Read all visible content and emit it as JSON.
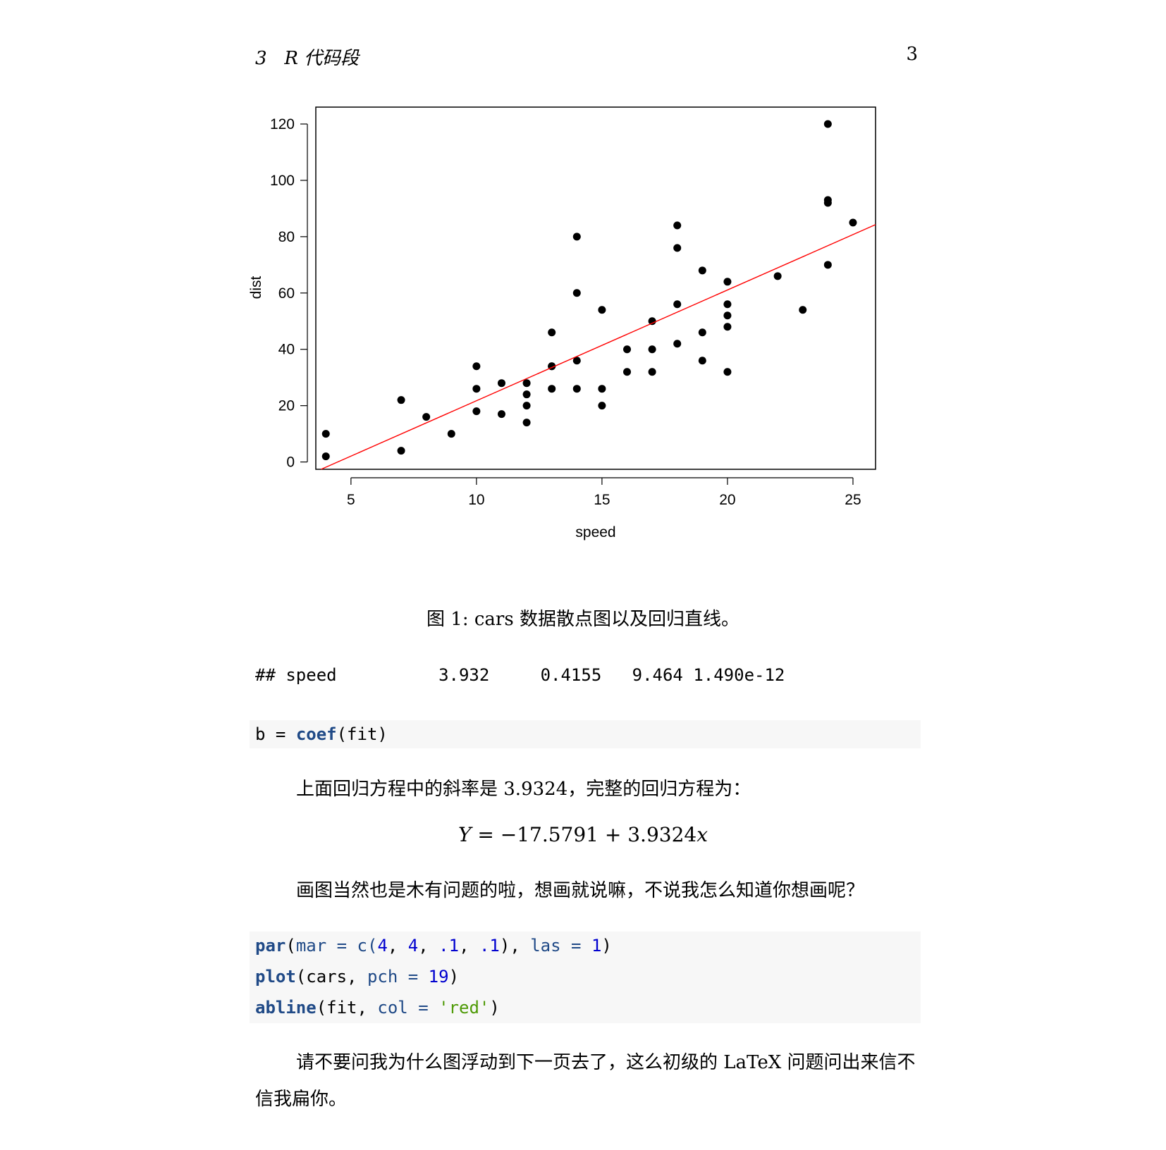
{
  "header": {
    "section": "3   R 代码段",
    "page_number": "3"
  },
  "figure": {
    "caption": "图 1: cars 数据散点图以及回归直线。",
    "chart_data": {
      "type": "scatter",
      "xlabel": "speed",
      "ylabel": "dist",
      "xlim": [
        3.6,
        25.9
      ],
      "ylim": [
        -2.6,
        126
      ],
      "xticks": [
        5,
        10,
        15,
        20,
        25
      ],
      "yticks": [
        0,
        20,
        40,
        60,
        80,
        100,
        120
      ],
      "points": [
        [
          4,
          2
        ],
        [
          4,
          10
        ],
        [
          7,
          4
        ],
        [
          7,
          22
        ],
        [
          8,
          16
        ],
        [
          9,
          10
        ],
        [
          10,
          18
        ],
        [
          10,
          26
        ],
        [
          10,
          34
        ],
        [
          11,
          17
        ],
        [
          11,
          28
        ],
        [
          12,
          14
        ],
        [
          12,
          20
        ],
        [
          12,
          24
        ],
        [
          12,
          28
        ],
        [
          13,
          26
        ],
        [
          13,
          34
        ],
        [
          13,
          34
        ],
        [
          13,
          46
        ],
        [
          14,
          26
        ],
        [
          14,
          36
        ],
        [
          14,
          60
        ],
        [
          14,
          80
        ],
        [
          15,
          20
        ],
        [
          15,
          26
        ],
        [
          15,
          54
        ],
        [
          16,
          32
        ],
        [
          16,
          40
        ],
        [
          17,
          32
        ],
        [
          17,
          40
        ],
        [
          17,
          50
        ],
        [
          18,
          42
        ],
        [
          18,
          56
        ],
        [
          18,
          76
        ],
        [
          18,
          84
        ],
        [
          19,
          36
        ],
        [
          19,
          46
        ],
        [
          19,
          68
        ],
        [
          20,
          32
        ],
        [
          20,
          48
        ],
        [
          20,
          52
        ],
        [
          20,
          56
        ],
        [
          20,
          64
        ],
        [
          22,
          66
        ],
        [
          23,
          54
        ],
        [
          24,
          70
        ],
        [
          24,
          92
        ],
        [
          24,
          93
        ],
        [
          24,
          120
        ],
        [
          25,
          85
        ]
      ],
      "regression_line": {
        "intercept": -17.5791,
        "slope": 3.9324,
        "color": "#ff0000"
      },
      "point_color": "#000000",
      "grid": false
    }
  },
  "output": {
    "line": "## speed          3.932     0.4155   9.464 1.490e-12"
  },
  "code1": {
    "b": "b",
    "eq": " = ",
    "fn": "coef",
    "rest": "(fit)"
  },
  "para1": "上面回归方程中的斜率是 3.9324，完整的回归方程为：",
  "equation": "Y = −17.5791 + 3.9324x",
  "para2": "画图当然也是木有问题的啦，想画就说嘛，不说我怎么知道你想画呢？",
  "code2": {
    "line1": {
      "fn": "par",
      "p1": "(",
      "arg1": "mar",
      "eq1": " = ",
      "c": "c(",
      "n1": "4",
      "s1": ", ",
      "n2": "4",
      "s2": ", ",
      "n3": ".1",
      "s3": ", ",
      "n4": ".1",
      "s4": "), ",
      "arg2": "las",
      "eq2": " = ",
      "n5": "1",
      "end": ")"
    },
    "line2": {
      "fn": "plot",
      "p1": "(cars, ",
      "arg": "pch",
      "eq": " = ",
      "n": "19",
      "end": ")"
    },
    "line3": {
      "fn": "abline",
      "p1": "(fit, ",
      "arg": "col",
      "eq": " = ",
      "str": "'red'",
      "end": ")"
    }
  },
  "para3": "请不要问我为什么图浮动到下一页去了，这么初级的 LaTeX 问题问出来信不信我扁你。"
}
